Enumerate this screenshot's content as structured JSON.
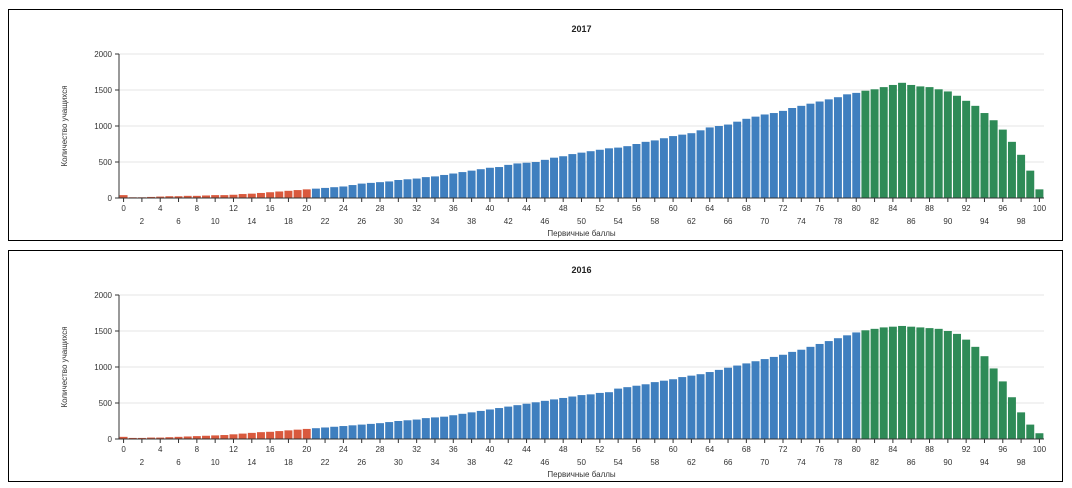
{
  "chart_data": [
    {
      "type": "bar",
      "title": "2017",
      "xlabel": "Первичные баллы",
      "ylabel": "Количество учащихся",
      "ylim": [
        0,
        2000
      ],
      "yticks": [
        0,
        500,
        1000,
        1500,
        2000
      ],
      "xlim": [
        0,
        100
      ],
      "xticks_top": [
        "0",
        "4",
        "8",
        "12",
        "16",
        "20",
        "24",
        "28",
        "32",
        "36",
        "40",
        "44",
        "48",
        "52",
        "56",
        "60",
        "64",
        "68",
        "72",
        "76",
        "80",
        "84",
        "88",
        "92",
        "96",
        "100"
      ],
      "xticks_bottom": [
        "2",
        "6",
        "10",
        "14",
        "18",
        "22",
        "26",
        "30",
        "34",
        "38",
        "42",
        "46",
        "50",
        "54",
        "58",
        "62",
        "66",
        "70",
        "74",
        "78",
        "82",
        "86",
        "90",
        "94",
        "98"
      ],
      "grid": true,
      "color_bands": [
        {
          "from": 0,
          "to": 20,
          "color": "#d9593d"
        },
        {
          "from": 21,
          "to": 80,
          "color": "#3f7fbf"
        },
        {
          "from": 81,
          "to": 100,
          "color": "#2e8b57"
        }
      ],
      "x": [
        0,
        1,
        2,
        3,
        4,
        5,
        6,
        7,
        8,
        9,
        10,
        11,
        12,
        13,
        14,
        15,
        16,
        17,
        18,
        19,
        20,
        21,
        22,
        23,
        24,
        25,
        26,
        27,
        28,
        29,
        30,
        31,
        32,
        33,
        34,
        35,
        36,
        37,
        38,
        39,
        40,
        41,
        42,
        43,
        44,
        45,
        46,
        47,
        48,
        49,
        50,
        51,
        52,
        53,
        54,
        55,
        56,
        57,
        58,
        59,
        60,
        61,
        62,
        63,
        64,
        65,
        66,
        67,
        68,
        69,
        70,
        71,
        72,
        73,
        74,
        75,
        76,
        77,
        78,
        79,
        80,
        81,
        82,
        83,
        84,
        85,
        86,
        87,
        88,
        89,
        90,
        91,
        92,
        93,
        94,
        95,
        96,
        97,
        98,
        99,
        100
      ],
      "values": [
        40,
        10,
        10,
        15,
        20,
        25,
        25,
        30,
        30,
        35,
        40,
        40,
        45,
        55,
        60,
        70,
        80,
        90,
        100,
        110,
        120,
        130,
        140,
        150,
        160,
        180,
        200,
        210,
        220,
        230,
        250,
        260,
        270,
        290,
        300,
        320,
        340,
        360,
        380,
        400,
        420,
        430,
        460,
        480,
        490,
        500,
        530,
        560,
        580,
        610,
        630,
        650,
        670,
        690,
        700,
        720,
        750,
        780,
        800,
        830,
        860,
        880,
        900,
        940,
        980,
        1000,
        1020,
        1060,
        1100,
        1130,
        1160,
        1180,
        1210,
        1250,
        1280,
        1310,
        1340,
        1370,
        1400,
        1440,
        1460,
        1490,
        1510,
        1540,
        1570,
        1600,
        1570,
        1550,
        1540,
        1510,
        1480,
        1420,
        1350,
        1280,
        1180,
        1080,
        950,
        780,
        600,
        380,
        120
      ]
    },
    {
      "type": "bar",
      "title": "2016",
      "xlabel": "Первичные баллы",
      "ylabel": "Количество учащихся",
      "ylim": [
        0,
        2000
      ],
      "yticks": [
        0,
        500,
        1000,
        1500,
        2000
      ],
      "xlim": [
        0,
        100
      ],
      "xticks_top": [
        "0",
        "4",
        "8",
        "12",
        "16",
        "20",
        "24",
        "28",
        "32",
        "36",
        "40",
        "44",
        "48",
        "52",
        "56",
        "60",
        "64",
        "68",
        "72",
        "76",
        "80",
        "84",
        "88",
        "92",
        "96",
        "100"
      ],
      "xticks_bottom": [
        "2",
        "6",
        "10",
        "14",
        "18",
        "22",
        "26",
        "30",
        "34",
        "38",
        "42",
        "46",
        "50",
        "54",
        "58",
        "62",
        "66",
        "70",
        "74",
        "78",
        "82",
        "86",
        "90",
        "94",
        "98"
      ],
      "grid": true,
      "color_bands": [
        {
          "from": 0,
          "to": 20,
          "color": "#d9593d"
        },
        {
          "from": 21,
          "to": 80,
          "color": "#3f7fbf"
        },
        {
          "from": 81,
          "to": 100,
          "color": "#2e8b57"
        }
      ],
      "x": [
        0,
        1,
        2,
        3,
        4,
        5,
        6,
        7,
        8,
        9,
        10,
        11,
        12,
        13,
        14,
        15,
        16,
        17,
        18,
        19,
        20,
        21,
        22,
        23,
        24,
        25,
        26,
        27,
        28,
        29,
        30,
        31,
        32,
        33,
        34,
        35,
        36,
        37,
        38,
        39,
        40,
        41,
        42,
        43,
        44,
        45,
        46,
        47,
        48,
        49,
        50,
        51,
        52,
        53,
        54,
        55,
        56,
        57,
        58,
        59,
        60,
        61,
        62,
        63,
        64,
        65,
        66,
        67,
        68,
        69,
        70,
        71,
        72,
        73,
        74,
        75,
        76,
        77,
        78,
        79,
        80,
        81,
        82,
        83,
        84,
        85,
        86,
        87,
        88,
        89,
        90,
        91,
        92,
        93,
        94,
        95,
        96,
        97,
        98,
        99,
        100
      ],
      "values": [
        30,
        15,
        15,
        20,
        20,
        25,
        30,
        35,
        40,
        45,
        50,
        55,
        65,
        75,
        85,
        95,
        100,
        110,
        120,
        130,
        140,
        150,
        160,
        170,
        180,
        190,
        200,
        210,
        220,
        235,
        250,
        260,
        270,
        290,
        300,
        310,
        330,
        350,
        370,
        390,
        410,
        430,
        450,
        470,
        490,
        510,
        530,
        550,
        570,
        590,
        610,
        620,
        640,
        650,
        700,
        720,
        740,
        760,
        790,
        810,
        830,
        860,
        880,
        900,
        930,
        960,
        990,
        1020,
        1050,
        1080,
        1110,
        1140,
        1170,
        1210,
        1240,
        1280,
        1320,
        1360,
        1400,
        1440,
        1480,
        1510,
        1530,
        1550,
        1560,
        1570,
        1560,
        1550,
        1540,
        1530,
        1500,
        1460,
        1380,
        1280,
        1150,
        980,
        800,
        580,
        370,
        200,
        80
      ]
    }
  ]
}
